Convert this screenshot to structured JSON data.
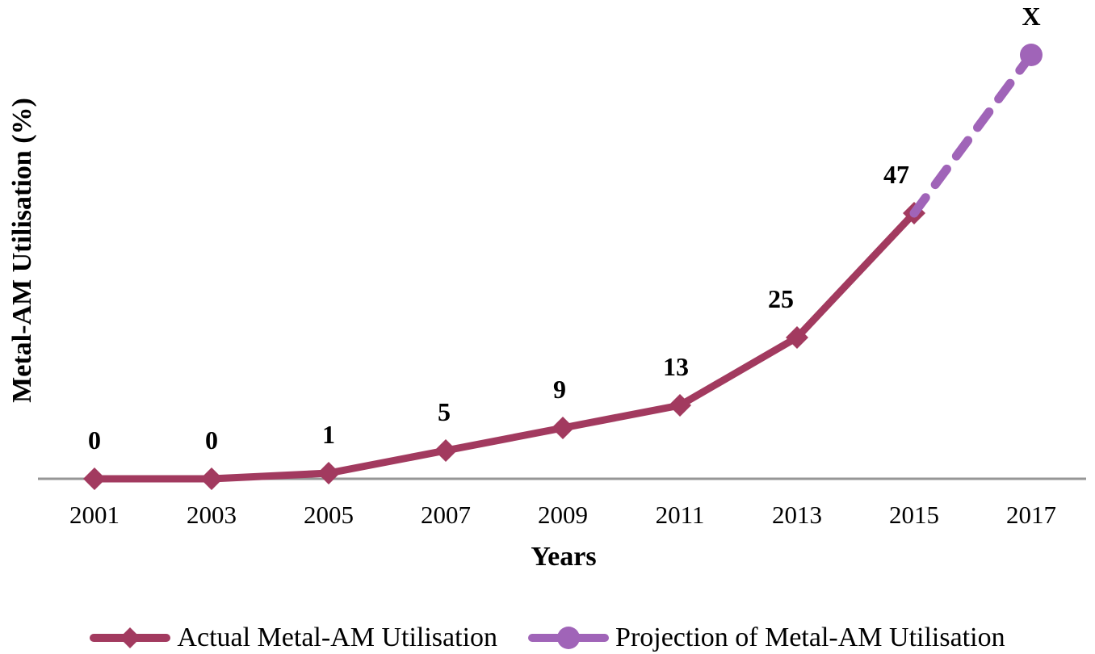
{
  "chart_data": {
    "type": "line",
    "title": "",
    "xlabel": "Years",
    "ylabel": "Metal-AM Utilisation (%)",
    "x_ticks": [
      "2001",
      "2003",
      "2005",
      "2007",
      "2009",
      "2011",
      "2013",
      "2015",
      "2017"
    ],
    "xlim": [
      2000,
      2018
    ],
    "ylim": [
      0,
      80
    ],
    "grid": false,
    "background": "#FFFFFF",
    "axis_color": "#969696",
    "legend_position": "bottom",
    "series": [
      {
        "name": "Actual Metal-AM Utilisation",
        "type": "line",
        "line_style": "solid",
        "marker": "diamond",
        "color": "#A23A5F",
        "x": [
          2001,
          2003,
          2005,
          2007,
          2009,
          2011,
          2013,
          2015
        ],
        "values": [
          0,
          0,
          1,
          5,
          9,
          13,
          25,
          47
        ],
        "point_labels": [
          "0",
          "0",
          "1",
          "5",
          "9",
          "13",
          "25",
          "47"
        ]
      },
      {
        "name": "Projection of Metal-AM Utilisation",
        "type": "line",
        "line_style": "dashed",
        "marker": "circle",
        "color": "#A064B8",
        "x": [
          2015,
          2017
        ],
        "values": [
          47,
          75
        ],
        "point_labels": [
          "",
          "X"
        ],
        "markers_at_x": [
          2017
        ]
      }
    ]
  }
}
